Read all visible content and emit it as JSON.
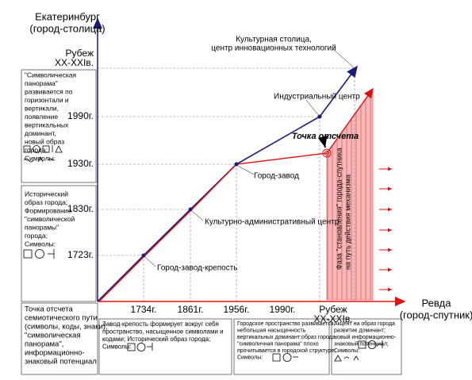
{
  "header": {
    "city": [
      "Екатеринбург",
      "(город-столица)"
    ],
    "satellite": [
      "Ревда",
      "(город-спутник)"
    ]
  },
  "y_axis_labels": [
    [
      "Рубеж",
      "XX-XXIв."
    ],
    [
      "1990г."
    ],
    [
      "1930г."
    ],
    [
      "1830г."
    ],
    [
      "1723г."
    ]
  ],
  "x_axis_labels": [
    [
      "1734г."
    ],
    [
      "1861г."
    ],
    [
      "1956г."
    ],
    [
      "1990г."
    ],
    [
      "Рубеж",
      "XX-XXIв."
    ]
  ],
  "line_labels": [
    [
      "Культурная столица,",
      "центр инновационных технологий"
    ],
    [
      "Индустриальный центр"
    ],
    [
      "Город-завод"
    ],
    [
      "Культурно-административный центр"
    ],
    [
      "Город-завод-крепость"
    ]
  ],
  "start_point": "Точка отсчета",
  "phase_label": [
    "Фаза \"становления\" города-спутника",
    "на путь действия механизма"
  ],
  "left_boxes": [
    [
      "\"Символическая",
      "панорама\"",
      "развивается по",
      "горизонтали и",
      "вертикали,",
      " появление",
      "вертикальных",
      "доминант,",
      "новый образ",
      " города;",
      "Символы:"
    ],
    [
      "Исторический",
      "образ города;",
      "Формирование",
      "\"символической",
      "панорамы\"",
      "города;",
      "Символы:"
    ]
  ],
  "bottom_boxes": [
    [
      "Точка отсчета",
      "семиотического пути",
      "(символы, коды, знаки),",
      "\"символическая",
      "панорама\",",
      "информационно-",
      "знаковый потенциал"
    ],
    [
      "Завод-крепость формирует вокруг себя",
      "пространство, насыщенное символами и",
      " кодами; Исторический образ города;",
      "Символы:"
    ],
    [
      "Городское пространство развивается,",
      "небольшая насыщенность",
      "вертикальных доминант;образ города,",
      "\"символичная панорама\" плохо",
      "прочитывается в  городской структуре;",
      " Символы:"
    ],
    [
      "Акцент на образ города",
      "развитие доминант;",
      "новый информационно-",
      "знаковый потенциал;",
      "Символы:"
    ]
  ]
}
